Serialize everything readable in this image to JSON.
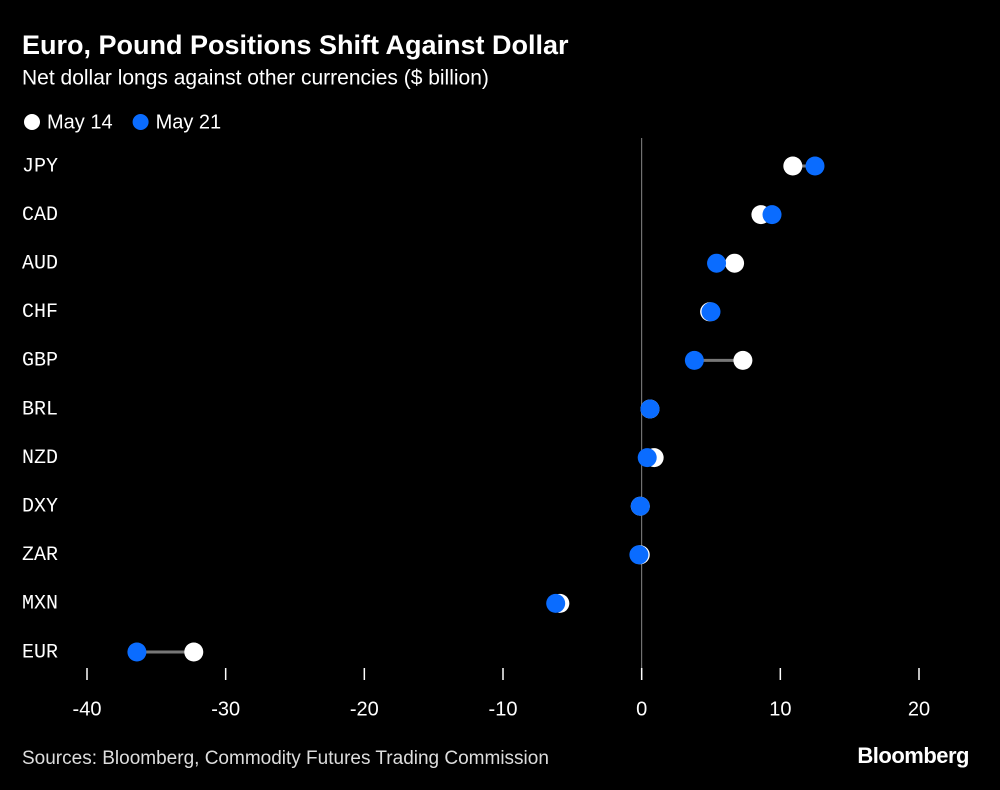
{
  "chart_data": {
    "type": "dot",
    "title": "Euro, Pound Positions Shift Against Dollar",
    "subtitle": "Net dollar longs against other currencies ($ billion)",
    "categories": [
      "JPY",
      "CAD",
      "AUD",
      "CHF",
      "GBP",
      "BRL",
      "NZD",
      "DXY",
      "ZAR",
      "MXN",
      "EUR"
    ],
    "series": [
      {
        "name": "May 14",
        "color": "#ffffff",
        "values": [
          10.9,
          8.6,
          6.7,
          4.9,
          7.3,
          0.6,
          0.9,
          -0.1,
          -0.1,
          -5.9,
          -32.3
        ]
      },
      {
        "name": "May 21",
        "color": "#0a6cff",
        "values": [
          12.5,
          9.4,
          5.4,
          5.0,
          3.8,
          0.6,
          0.4,
          -0.1,
          -0.2,
          -6.2,
          -36.4
        ]
      }
    ],
    "xlim": [
      -40,
      20
    ],
    "xticks": [
      -40,
      -30,
      -20,
      -10,
      0,
      10,
      20
    ],
    "source": "Sources: Bloomberg, Commodity Futures Trading Commission",
    "brand": "Bloomberg"
  }
}
